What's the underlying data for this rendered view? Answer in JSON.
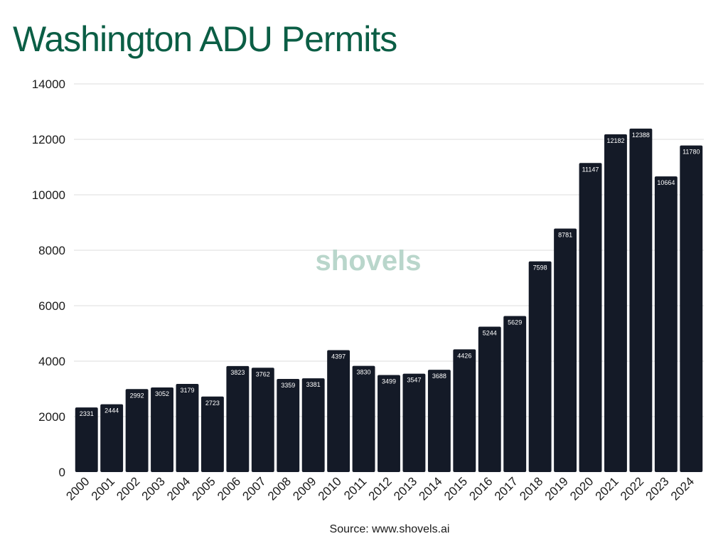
{
  "chart_data": {
    "type": "bar",
    "title": "Washington ADU Permits",
    "xlabel": "",
    "ylabel": "",
    "categories": [
      "2000",
      "2001",
      "2002",
      "2003",
      "2004",
      "2005",
      "2006",
      "2007",
      "2008",
      "2009",
      "2010",
      "2011",
      "2012",
      "2013",
      "2014",
      "2015",
      "2016",
      "2017",
      "2018",
      "2019",
      "2020",
      "2021",
      "2022",
      "2023",
      "2024"
    ],
    "values": [
      2331,
      2444,
      2992,
      3052,
      3179,
      2723,
      3823,
      3762,
      3359,
      3381,
      4397,
      3830,
      3499,
      3547,
      3688,
      4426,
      5244,
      5629,
      7598,
      8781,
      11147,
      12182,
      12388,
      10664,
      11780
    ],
    "ylim": [
      0,
      14000
    ],
    "yticks": [
      0,
      2000,
      4000,
      6000,
      8000,
      10000,
      12000,
      14000
    ],
    "grid": true,
    "legend": "none",
    "bar_color": "#141a27",
    "data_labels": true
  },
  "watermark": "shovels",
  "source": "Source: www.shovels.ai",
  "colors": {
    "title": "#0b5e45",
    "watermark": "#b9d6cb",
    "watermark_accent": "#f2c94c"
  }
}
